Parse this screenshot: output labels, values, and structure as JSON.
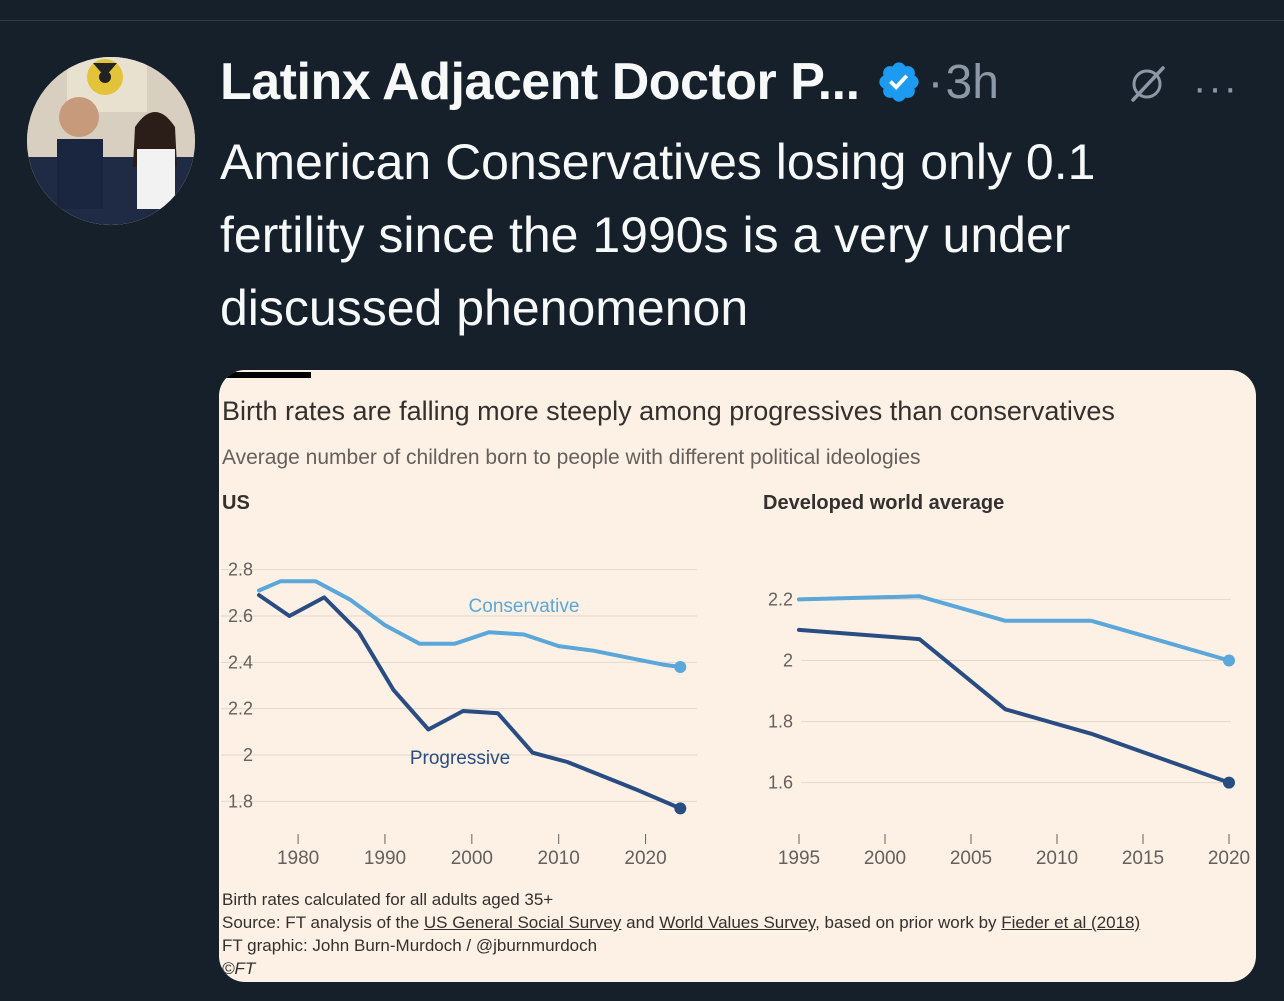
{
  "tweet": {
    "author_name": "Latinx Adjacent Doctor P...",
    "separator": "·",
    "time": "3h",
    "more_label": "···",
    "text": "American Conservatives losing only 0.1 fertility since the 1990s is a very under discussed phenomenon",
    "verified_color": "#1d9bf0"
  },
  "card": {
    "title": "Birth rates are falling more steeply among progressives than conservatives",
    "subtitle": "Average number of children born to people with different political ideologies",
    "footnote": "Birth rates calculated for all adults aged 35+",
    "source_prefix": "Source: FT analysis of the ",
    "source_link1": "US General Social Survey",
    "source_mid": " and ",
    "source_link2": "World Values Survey",
    "source_mid2": ", based on prior work by ",
    "source_link3": "Fieder et al (2018)",
    "graphic_credit": "FT graphic: John Burn-Murdoch / @jburnmurdoch",
    "copyright": "©FT"
  },
  "chart_data": [
    {
      "type": "line",
      "title": "US",
      "ylim": [
        1.75,
        2.85
      ],
      "xlim": [
        1975.5,
        2025
      ],
      "yticks": [
        "2.8",
        "2.6",
        "2.4",
        "2.2",
        "2",
        "1.8"
      ],
      "ytick_values": [
        2.8,
        2.6,
        2.4,
        2.2,
        2.0,
        1.8
      ],
      "xticks": [
        "1980",
        "1990",
        "2000",
        "2010",
        "2020"
      ],
      "xtick_values": [
        1980,
        1990,
        2000,
        2010,
        2020
      ],
      "grid": true,
      "series": [
        {
          "name": "Conservative",
          "color": "#5ba7d9",
          "x": [
            1975.5,
            1978,
            1982,
            1986,
            1990,
            1994,
            1998,
            2002,
            2006,
            2010,
            2014,
            2018,
            2022,
            2024
          ],
          "y": [
            2.71,
            2.75,
            2.75,
            2.67,
            2.56,
            2.48,
            2.48,
            2.53,
            2.52,
            2.47,
            2.45,
            2.42,
            2.39,
            2.38
          ]
        },
        {
          "name": "Progressive",
          "color": "#294d82",
          "x": [
            1975.5,
            1979,
            1983,
            1987,
            1991,
            1995,
            1999,
            2003,
            2007,
            2011,
            2015,
            2019,
            2024
          ],
          "y": [
            2.69,
            2.6,
            2.68,
            2.53,
            2.28,
            2.11,
            2.19,
            2.18,
            2.01,
            1.97,
            1.91,
            1.85,
            1.77
          ]
        }
      ]
    },
    {
      "type": "line",
      "title": "Developed world average",
      "ylim": [
        1.53,
        2.27
      ],
      "xlim": [
        1995,
        2020
      ],
      "yticks": [
        "2.2",
        "2",
        "1.8",
        "1.6"
      ],
      "ytick_values": [
        2.2,
        2.0,
        1.8,
        1.6
      ],
      "xticks": [
        "1995",
        "2000",
        "2005",
        "2010",
        "2015",
        "2020"
      ],
      "xtick_values": [
        1995,
        2000,
        2005,
        2010,
        2015,
        2020
      ],
      "grid": true,
      "series": [
        {
          "name": "Conservative",
          "color": "#5ba7d9",
          "x": [
            1995,
            2002,
            2007,
            2012,
            2020
          ],
          "y": [
            2.2,
            2.21,
            2.13,
            2.13,
            2.0
          ]
        },
        {
          "name": "Progressive",
          "color": "#294d82",
          "x": [
            1995,
            2002,
            2007,
            2012,
            2020
          ],
          "y": [
            2.1,
            2.07,
            1.84,
            1.76,
            1.6
          ]
        }
      ]
    }
  ]
}
